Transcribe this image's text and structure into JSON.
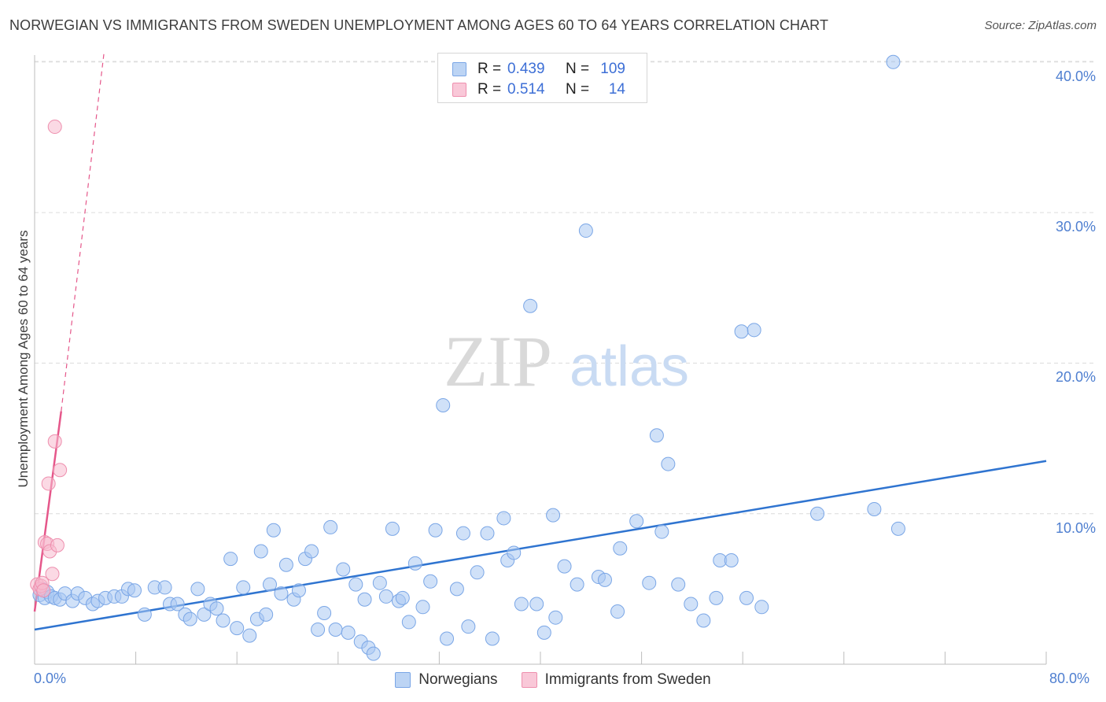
{
  "title": "NORWEGIAN VS IMMIGRANTS FROM SWEDEN UNEMPLOYMENT AMONG AGES 60 TO 64 YEARS CORRELATION CHART",
  "source": "Source: ZipAtlas.com",
  "watermark": {
    "zip": "ZIP",
    "atlas": "atlas"
  },
  "legend_top": [
    {
      "r_label": "R =",
      "r_value": "0.439",
      "n_label": "N =",
      "n_value": "109"
    },
    {
      "r_label": "R =",
      "r_value": "0.514",
      "n_label": "N =",
      "n_value": "14"
    }
  ],
  "legend_bottom": [
    "Norwegians",
    "Immigrants from Sweden"
  ],
  "colors": {
    "blue_fill": "#a9c8f2",
    "blue_stroke": "#7aa6e6",
    "blue_line": "#2f74d0",
    "pink_fill": "#f7b9cd",
    "pink_stroke": "#ee8fae",
    "pink_line": "#e5578a",
    "grid": "#dcdcdc",
    "axis_text": "#4f7fd0"
  },
  "chart_data": {
    "type": "scatter",
    "title": "NORWEGIAN VS IMMIGRANTS FROM SWEDEN UNEMPLOYMENT AMONG AGES 60 TO 64 YEARS CORRELATION CHART",
    "xlabel": "",
    "ylabel": "Unemployment Among Ages 60 to 64 years",
    "xlim": [
      0,
      80
    ],
    "ylim": [
      0,
      42
    ],
    "x_tick_labels": [
      "0.0%",
      "80.0%"
    ],
    "y_ticks": [
      10,
      20,
      30,
      40
    ],
    "y_tick_labels": [
      "10.0%",
      "20.0%",
      "30.0%",
      "40.0%"
    ],
    "series": [
      {
        "name": "Norwegians",
        "r": 0.439,
        "n": 109,
        "trend": {
          "x": [
            0,
            80
          ],
          "y": [
            2.3,
            13.5
          ],
          "style": "solid"
        },
        "points": [
          [
            0.4,
            4.6
          ],
          [
            0.6,
            5.0
          ],
          [
            0.8,
            4.4
          ],
          [
            1.0,
            4.8
          ],
          [
            1.3,
            4.5
          ],
          [
            1.6,
            4.4
          ],
          [
            2.0,
            4.3
          ],
          [
            2.4,
            4.7
          ],
          [
            3.0,
            4.2
          ],
          [
            3.4,
            4.7
          ],
          [
            4.0,
            4.4
          ],
          [
            4.6,
            4.0
          ],
          [
            5.0,
            4.2
          ],
          [
            5.6,
            4.4
          ],
          [
            6.3,
            4.5
          ],
          [
            6.9,
            4.5
          ],
          [
            7.4,
            5.0
          ],
          [
            7.9,
            4.9
          ],
          [
            9.5,
            5.1
          ],
          [
            10.3,
            5.1
          ],
          [
            8.7,
            3.3
          ],
          [
            10.7,
            4.0
          ],
          [
            11.3,
            4.0
          ],
          [
            11.9,
            3.3
          ],
          [
            12.3,
            3.0
          ],
          [
            12.9,
            5.0
          ],
          [
            13.4,
            3.3
          ],
          [
            13.9,
            4.0
          ],
          [
            14.4,
            3.7
          ],
          [
            14.9,
            2.9
          ],
          [
            15.5,
            7.0
          ],
          [
            16.0,
            2.4
          ],
          [
            16.5,
            5.1
          ],
          [
            17.0,
            1.9
          ],
          [
            17.6,
            3.0
          ],
          [
            17.9,
            7.5
          ],
          [
            18.3,
            3.3
          ],
          [
            18.9,
            8.9
          ],
          [
            19.5,
            4.7
          ],
          [
            19.9,
            6.6
          ],
          [
            20.5,
            4.3
          ],
          [
            20.9,
            4.9
          ],
          [
            21.4,
            7.0
          ],
          [
            21.9,
            7.5
          ],
          [
            22.4,
            2.3
          ],
          [
            22.9,
            3.4
          ],
          [
            23.4,
            9.1
          ],
          [
            23.8,
            2.3
          ],
          [
            24.4,
            6.3
          ],
          [
            24.8,
            2.1
          ],
          [
            25.4,
            5.3
          ],
          [
            25.8,
            1.5
          ],
          [
            26.4,
            1.1
          ],
          [
            26.8,
            0.7
          ],
          [
            27.3,
            5.4
          ],
          [
            27.8,
            4.5
          ],
          [
            28.3,
            9.0
          ],
          [
            28.8,
            4.2
          ],
          [
            29.1,
            4.4
          ],
          [
            29.6,
            2.8
          ],
          [
            30.1,
            6.7
          ],
          [
            30.7,
            3.8
          ],
          [
            31.3,
            5.5
          ],
          [
            31.7,
            8.9
          ],
          [
            32.3,
            17.2
          ],
          [
            32.6,
            1.7
          ],
          [
            33.4,
            5.0
          ],
          [
            33.9,
            8.7
          ],
          [
            34.3,
            2.5
          ],
          [
            35.0,
            6.1
          ],
          [
            35.8,
            8.7
          ],
          [
            36.2,
            1.7
          ],
          [
            37.1,
            9.7
          ],
          [
            37.4,
            6.9
          ],
          [
            37.9,
            7.4
          ],
          [
            38.5,
            4.0
          ],
          [
            39.2,
            23.8
          ],
          [
            39.7,
            4.0
          ],
          [
            40.3,
            2.1
          ],
          [
            41.0,
            9.9
          ],
          [
            41.2,
            3.1
          ],
          [
            41.9,
            6.5
          ],
          [
            42.9,
            5.3
          ],
          [
            43.6,
            28.8
          ],
          [
            44.6,
            5.8
          ],
          [
            45.1,
            5.6
          ],
          [
            46.1,
            3.5
          ],
          [
            46.3,
            7.7
          ],
          [
            47.6,
            9.5
          ],
          [
            48.6,
            5.4
          ],
          [
            49.2,
            15.2
          ],
          [
            49.6,
            8.8
          ],
          [
            50.1,
            13.3
          ],
          [
            50.9,
            5.3
          ],
          [
            51.9,
            4.0
          ],
          [
            52.9,
            2.9
          ],
          [
            53.9,
            4.4
          ],
          [
            54.2,
            6.9
          ],
          [
            55.1,
            6.9
          ],
          [
            55.9,
            22.1
          ],
          [
            56.3,
            4.4
          ],
          [
            56.9,
            22.2
          ],
          [
            57.5,
            3.8
          ],
          [
            61.9,
            10.0
          ],
          [
            66.4,
            10.3
          ],
          [
            68.3,
            9.0
          ],
          [
            67.9,
            40.0
          ],
          [
            18.6,
            5.3
          ],
          [
            26.1,
            4.3
          ]
        ]
      },
      {
        "name": "Immigrants from Sweden",
        "r": 0.514,
        "n": 14,
        "trend": {
          "x": [
            0,
            2.1
          ],
          "y": [
            3.5,
            16.8
          ],
          "style": "solid",
          "extension": {
            "x": [
              2.1,
              5.5
            ],
            "y": [
              16.8,
              40.7
            ],
            "style": "dashed"
          }
        },
        "points": [
          [
            0.2,
            5.3
          ],
          [
            0.4,
            5.0
          ],
          [
            0.5,
            5.2
          ],
          [
            0.6,
            5.4
          ],
          [
            0.7,
            4.9
          ],
          [
            0.8,
            8.1
          ],
          [
            1.0,
            8.0
          ],
          [
            1.1,
            12.0
          ],
          [
            1.2,
            7.5
          ],
          [
            1.4,
            6.0
          ],
          [
            1.6,
            14.8
          ],
          [
            1.8,
            7.9
          ],
          [
            2.0,
            12.9
          ],
          [
            1.6,
            35.7
          ]
        ]
      }
    ]
  }
}
